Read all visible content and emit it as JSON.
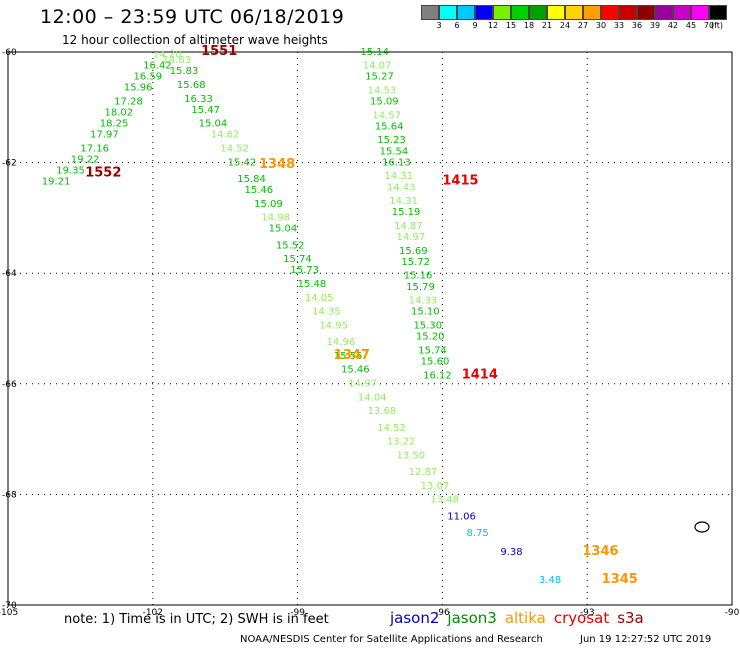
{
  "title": "12:00 – 23:59 UTC 06/18/2019",
  "subtitle": "12 hour collection of altimeter wave heights",
  "legend": {
    "colors": [
      "#808080",
      "#00ffff",
      "#00c8ff",
      "#0000ff",
      "#78f000",
      "#00d200",
      "#00a000",
      "#ffff00",
      "#ffd200",
      "#ffa000",
      "#ff0000",
      "#c80000",
      "#8c0000",
      "#9b009b",
      "#c800c8",
      "#ff00ff",
      "#000000"
    ],
    "labels": [
      "3",
      "6",
      "9",
      "12",
      "15",
      "18",
      "21",
      "24",
      "27",
      "30",
      "33",
      "36",
      "39",
      "42",
      "45",
      "70",
      "(ft)"
    ]
  },
  "map": {
    "x_ticks": [
      "-105",
      "-102",
      "-99",
      "-96",
      "-93",
      "-90"
    ],
    "y_ticks": [
      "-60",
      "-62",
      "-64",
      "-66",
      "-68",
      "-70"
    ],
    "lon_range": [
      -105,
      -90
    ],
    "lat_range": [
      -70,
      -60
    ]
  },
  "sat_colors": {
    "jason2": "#0000c8",
    "jason3": "#008c00",
    "altika": "#ff9600",
    "cryosat": "#e60000",
    "s3a": "#960000",
    "low": "#00bfff",
    "mid": "#00c000",
    "hi": "#50e050",
    "lt": "#90ee60"
  },
  "tracks": [
    {
      "pts": [
        {
          "lon": -104.3,
          "lat": -62.4,
          "v": "19.21",
          "c": "mid"
        },
        {
          "lon": -104.0,
          "lat": -62.2,
          "v": "19.35",
          "c": "mid"
        },
        {
          "lon": -103.7,
          "lat": -62.0,
          "v": "19.22",
          "c": "mid"
        },
        {
          "lon": -103.5,
          "lat": -61.8,
          "v": "17.16",
          "c": "mid"
        },
        {
          "lon": -103.3,
          "lat": -61.55,
          "v": "17.97",
          "c": "mid"
        },
        {
          "lon": -103.1,
          "lat": -61.35,
          "v": "18.25",
          "c": "mid"
        },
        {
          "lon": -103.0,
          "lat": -61.15,
          "v": "18.02",
          "c": "mid"
        },
        {
          "lon": -102.8,
          "lat": -60.95,
          "v": "17.28",
          "c": "mid"
        },
        {
          "lon": -102.6,
          "lat": -60.7,
          "v": "15.96",
          "c": "mid"
        },
        {
          "lon": -102.4,
          "lat": -60.5,
          "v": "16.59",
          "c": "mid"
        },
        {
          "lon": -102.2,
          "lat": -60.3,
          "v": "16.42",
          "c": "mid"
        },
        {
          "lon": -102.0,
          "lat": -60.1,
          "v": "14.20",
          "c": "lt"
        }
      ]
    },
    {
      "pts": [
        {
          "lon": -101.8,
          "lat": -60.2,
          "v": "14.63",
          "c": "lt"
        },
        {
          "lon": -101.65,
          "lat": -60.4,
          "v": "15.83",
          "c": "mid"
        },
        {
          "lon": -101.5,
          "lat": -60.65,
          "v": "15.68",
          "c": "mid"
        },
        {
          "lon": -101.35,
          "lat": -60.9,
          "v": "16.33",
          "c": "mid"
        },
        {
          "lon": -101.2,
          "lat": -61.1,
          "v": "15.47",
          "c": "mid"
        },
        {
          "lon": -101.05,
          "lat": -61.35,
          "v": "15.04",
          "c": "mid"
        },
        {
          "lon": -100.8,
          "lat": -61.55,
          "v": "14.62",
          "c": "lt"
        },
        {
          "lon": -100.6,
          "lat": -61.8,
          "v": "14.52",
          "c": "lt"
        },
        {
          "lon": -100.45,
          "lat": -62.05,
          "v": "15.42",
          "c": "mid"
        },
        {
          "lon": -100.25,
          "lat": -62.35,
          "v": "15.84",
          "c": "mid"
        },
        {
          "lon": -100.1,
          "lat": -62.55,
          "v": "15.46",
          "c": "mid"
        },
        {
          "lon": -99.9,
          "lat": -62.8,
          "v": "15.09",
          "c": "mid"
        },
        {
          "lon": -99.75,
          "lat": -63.05,
          "v": "14.98",
          "c": "lt"
        },
        {
          "lon": -99.6,
          "lat": -63.25,
          "v": "15.04",
          "c": "mid"
        },
        {
          "lon": -99.45,
          "lat": -63.55,
          "v": "15.52",
          "c": "mid"
        },
        {
          "lon": -99.3,
          "lat": -63.8,
          "v": "15.74",
          "c": "mid"
        },
        {
          "lon": -99.15,
          "lat": -64.0,
          "v": "15.73",
          "c": "mid"
        },
        {
          "lon": -99.0,
          "lat": -64.25,
          "v": "15.48",
          "c": "mid"
        },
        {
          "lon": -98.85,
          "lat": -64.5,
          "v": "14.05",
          "c": "lt"
        },
        {
          "lon": -98.7,
          "lat": -64.75,
          "v": "14.35",
          "c": "lt"
        },
        {
          "lon": -98.55,
          "lat": -65.0,
          "v": "14.95",
          "c": "lt"
        },
        {
          "lon": -98.4,
          "lat": -65.3,
          "v": "14.96",
          "c": "lt"
        },
        {
          "lon": -98.25,
          "lat": -65.55,
          "v": "15.55",
          "c": "mid"
        },
        {
          "lon": -98.1,
          "lat": -65.8,
          "v": "15.46",
          "c": "mid"
        },
        {
          "lon": -97.95,
          "lat": -66.05,
          "v": "14.97",
          "c": "lt"
        },
        {
          "lon": -97.75,
          "lat": -66.3,
          "v": "14.04",
          "c": "lt"
        },
        {
          "lon": -97.55,
          "lat": -66.55,
          "v": "13.68",
          "c": "lt"
        },
        {
          "lon": -97.35,
          "lat": -66.85,
          "v": "14.52",
          "c": "lt"
        },
        {
          "lon": -97.15,
          "lat": -67.1,
          "v": "13.22",
          "c": "lt"
        },
        {
          "lon": -96.95,
          "lat": -67.35,
          "v": "13.50",
          "c": "lt"
        },
        {
          "lon": -96.7,
          "lat": -67.65,
          "v": "12.87",
          "c": "lt"
        },
        {
          "lon": -96.45,
          "lat": -67.9,
          "v": "13.07",
          "c": "lt"
        },
        {
          "lon": -96.25,
          "lat": -68.15,
          "v": "13.48",
          "c": "lt"
        },
        {
          "lon": -95.9,
          "lat": -68.45,
          "v": "11.06",
          "c": "jason2"
        },
        {
          "lon": -95.5,
          "lat": -68.75,
          "v": "8.75",
          "c": "low"
        },
        {
          "lon": -94.8,
          "lat": -69.1,
          "v": "9.38",
          "c": "jason2"
        },
        {
          "lon": -94.0,
          "lat": -69.6,
          "v": "3.48",
          "c": "low"
        }
      ]
    },
    {
      "pts": [
        {
          "lon": -97.7,
          "lat": -60.05,
          "v": "15.14",
          "c": "mid"
        },
        {
          "lon": -97.65,
          "lat": -60.3,
          "v": "14.07",
          "c": "lt"
        },
        {
          "lon": -97.6,
          "lat": -60.5,
          "v": "15.27",
          "c": "mid"
        },
        {
          "lon": -97.55,
          "lat": -60.75,
          "v": "14.53",
          "c": "lt"
        },
        {
          "lon": -97.5,
          "lat": -60.95,
          "v": "15.09",
          "c": "mid"
        },
        {
          "lon": -97.45,
          "lat": -61.2,
          "v": "14.57",
          "c": "lt"
        },
        {
          "lon": -97.4,
          "lat": -61.4,
          "v": "15.64",
          "c": "mid"
        },
        {
          "lon": -97.35,
          "lat": -61.65,
          "v": "15.23",
          "c": "mid"
        },
        {
          "lon": -97.3,
          "lat": -61.85,
          "v": "15.54",
          "c": "mid"
        },
        {
          "lon": -97.25,
          "lat": -62.05,
          "v": "16.13",
          "c": "mid"
        },
        {
          "lon": -97.2,
          "lat": -62.3,
          "v": "14.31",
          "c": "lt"
        },
        {
          "lon": -97.15,
          "lat": -62.5,
          "v": "14.43",
          "c": "lt"
        },
        {
          "lon": -97.1,
          "lat": -62.75,
          "v": "14.31",
          "c": "lt"
        },
        {
          "lon": -97.05,
          "lat": -62.95,
          "v": "15.19",
          "c": "mid"
        },
        {
          "lon": -97.0,
          "lat": -63.2,
          "v": "14.87",
          "c": "lt"
        },
        {
          "lon": -96.95,
          "lat": -63.4,
          "v": "14.97",
          "c": "lt"
        },
        {
          "lon": -96.9,
          "lat": -63.65,
          "v": "15.69",
          "c": "mid"
        },
        {
          "lon": -96.85,
          "lat": -63.85,
          "v": "15.72",
          "c": "mid"
        },
        {
          "lon": -96.8,
          "lat": -64.1,
          "v": "15.16",
          "c": "mid"
        },
        {
          "lon": -96.75,
          "lat": -64.3,
          "v": "15.79",
          "c": "mid"
        },
        {
          "lon": -96.7,
          "lat": -64.55,
          "v": "14.33",
          "c": "lt"
        },
        {
          "lon": -96.65,
          "lat": -64.75,
          "v": "15.10",
          "c": "mid"
        },
        {
          "lon": -96.6,
          "lat": -65.0,
          "v": "15.30",
          "c": "mid"
        },
        {
          "lon": -96.55,
          "lat": -65.2,
          "v": "15.20",
          "c": "mid"
        },
        {
          "lon": -96.5,
          "lat": -65.45,
          "v": "15.74",
          "c": "mid"
        },
        {
          "lon": -96.45,
          "lat": -65.65,
          "v": "15.60",
          "c": "mid"
        },
        {
          "lon": -96.4,
          "lat": -65.9,
          "v": "16.12",
          "c": "mid"
        }
      ]
    }
  ],
  "times": [
    {
      "lon": -101.0,
      "lat": -60.05,
      "t": "1551",
      "c": "s3a"
    },
    {
      "lon": -103.4,
      "lat": -62.25,
      "t": "1552",
      "c": "s3a"
    },
    {
      "lon": -99.8,
      "lat": -62.1,
      "t": "1348",
      "c": "altika"
    },
    {
      "lon": -98.25,
      "lat": -65.55,
      "t": "1347",
      "c": "altika"
    },
    {
      "lon": -96.0,
      "lat": -62.4,
      "t": "1415",
      "c": "cryosat"
    },
    {
      "lon": -95.6,
      "lat": -65.9,
      "t": "1414",
      "c": "cryosat"
    },
    {
      "lon": -93.1,
      "lat": -69.1,
      "t": "1346",
      "c": "altika"
    },
    {
      "lon": -92.7,
      "lat": -69.6,
      "t": "1345",
      "c": "altika"
    }
  ],
  "footer_note": "note:  1) Time is in UTC;  2) SWH is in feet",
  "satellites": [
    {
      "name": "jason2",
      "color": "#0000c8"
    },
    {
      "name": "jason3",
      "color": "#008c00"
    },
    {
      "name": "altika",
      "color": "#ff9600"
    },
    {
      "name": "cryosat",
      "color": "#e60000"
    },
    {
      "name": "s3a",
      "color": "#960000"
    }
  ],
  "credit": "NOAA/NESDIS Center for Satellite Applications and Research",
  "timestamp": "Jun 19 12:27:52 UTC 2019"
}
